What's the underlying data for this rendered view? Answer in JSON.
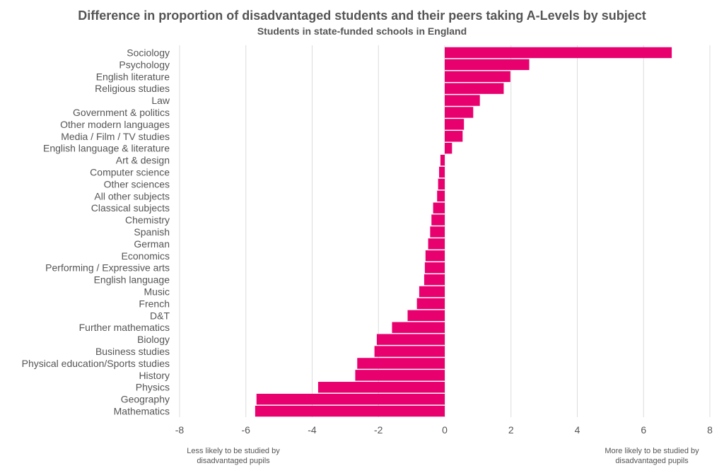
{
  "chart_data": {
    "type": "bar",
    "orientation": "horizontal",
    "title": "Difference in proportion of disadvantaged students and their peers taking A-Levels by subject",
    "subtitle": "Students in state-funded schools in England",
    "xlim": [
      -8,
      8
    ],
    "xticks": [
      -8,
      -6,
      -4,
      -2,
      0,
      2,
      4,
      6,
      8
    ],
    "grid": true,
    "bar_color": "#e8006e",
    "categories": [
      "Sociology",
      "Psychology",
      "English literature",
      "Religious studies",
      "Law",
      "Government & politics",
      "Other modern languages",
      "Media / Film / TV studies",
      "English language & literature",
      "Art & design",
      "Computer science",
      "Other sciences",
      "All other subjects",
      "Classical subjects",
      "Chemistry",
      "Spanish",
      "German",
      "Economics",
      "Performing / Expressive arts",
      "English language",
      "Music",
      "French",
      "D&T",
      "Further mathematics",
      "Biology",
      "Business studies",
      "Physical education/Sports studies",
      "History",
      "Physics",
      "Geography",
      "Mathematics"
    ],
    "values": [
      6.85,
      2.55,
      1.98,
      1.78,
      1.06,
      0.86,
      0.58,
      0.54,
      0.22,
      -0.13,
      -0.17,
      -0.2,
      -0.23,
      -0.35,
      -0.4,
      -0.44,
      -0.5,
      -0.58,
      -0.6,
      -0.62,
      -0.77,
      -0.84,
      -1.12,
      -1.59,
      -2.05,
      -2.12,
      -2.64,
      -2.7,
      -3.82,
      -5.68,
      -5.72
    ],
    "annotations": {
      "left": "Less likely to be studied by disadvantaged pupils",
      "right": "More likely to be studied by disadvantaged pupils"
    }
  }
}
